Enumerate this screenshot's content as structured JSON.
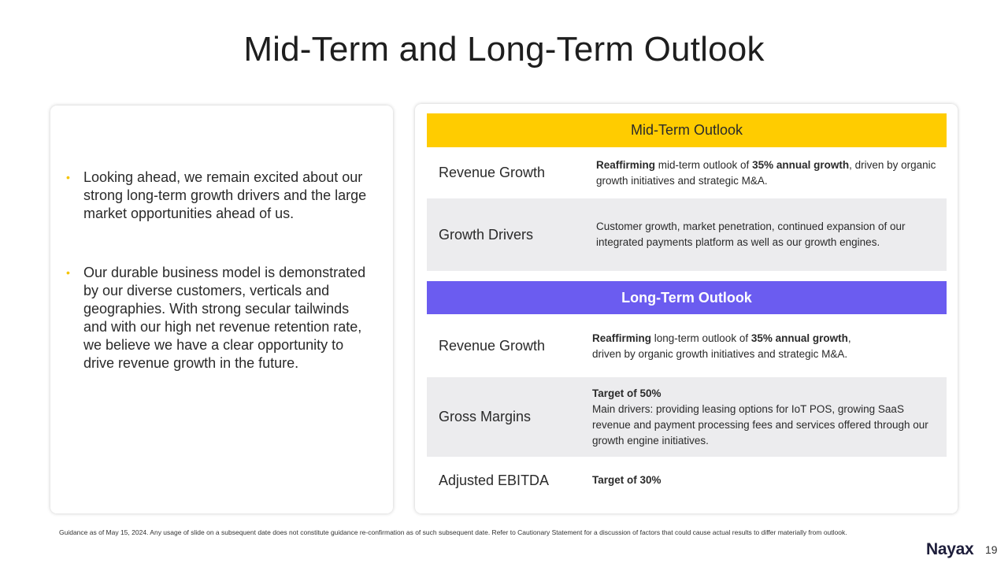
{
  "title": "Mid-Term and Long-Term Outlook",
  "left_card": {
    "bullets": [
      "Looking ahead, we remain excited about our strong long-term growth drivers and the large market opportunities ahead of us.",
      "Our durable business model is demonstrated by our diverse customers, verticals and geographies. With strong secular tailwinds and with our high net revenue retention rate, we believe we have a clear opportunity to drive revenue growth in the future."
    ]
  },
  "mid_term": {
    "heading": "Mid-Term Outlook",
    "rows": [
      {
        "label": "Revenue Growth",
        "bold1": "Reaffirming",
        "text1": " mid-term outlook of ",
        "bold2": "35% annual growth",
        "text2": ", driven by organic growth initiatives and strategic M&A."
      },
      {
        "label": "Growth Drivers",
        "text": "Customer growth, market penetration, continued expansion of our integrated payments platform as well as our growth engines."
      }
    ]
  },
  "long_term": {
    "heading": "Long-Term Outlook",
    "rows": [
      {
        "label": "Revenue Growth",
        "bold1": "Reaffirming",
        "text1": " long-term outlook of ",
        "bold2": "35% annual growth",
        "text2": ",",
        "text3": "driven by organic growth initiatives and strategic M&A."
      },
      {
        "label": "Gross Margins",
        "bold": "Target of 50%",
        "text": "Main drivers: providing leasing options for IoT POS, growing SaaS revenue and payment processing fees and services offered through our growth engine initiatives."
      },
      {
        "label": "Adjusted EBITDA",
        "bold": "Target of 30%"
      }
    ]
  },
  "footnote": "Guidance as of May 15, 2024. Any usage of slide on a subsequent date does not constitute guidance re-confirmation as of such subsequent date. Refer to Cautionary Statement for a discussion of factors that could cause actual results to differ materially from outlook.",
  "logo": "Nayax",
  "page_number": "19",
  "colors": {
    "mid_term_band": "#ffcc00",
    "long_term_band": "#6b5cf0",
    "row_shade": "#ececee",
    "bullet": "#f5c400"
  }
}
